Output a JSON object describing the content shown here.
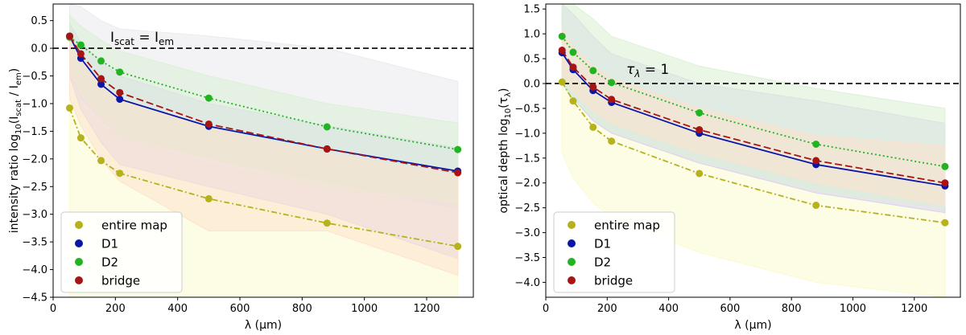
{
  "chart_data": [
    {
      "type": "line",
      "xlabel": "λ (μm)",
      "ylabel": "intensity ratio  log10(Iscat / Iem)",
      "ylabel_parts": {
        "prefix": "intensity ratio  log",
        "sub1": "10",
        "paren_open": "(I",
        "sub2": "scat",
        "mid": " / I",
        "sub3": "em",
        "paren_close": ")"
      },
      "annotation": {
        "text_I": "I",
        "sub_left": "scat",
        "eq": " = I",
        "sub_right": "em"
      },
      "xlim": [
        0,
        1350
      ],
      "ylim": [
        -4.5,
        0.8
      ],
      "xticks": [
        0,
        200,
        400,
        600,
        800,
        1000,
        1200
      ],
      "yticks": [
        -4.5,
        -4.0,
        -3.5,
        -3.0,
        -2.5,
        -2.0,
        -1.5,
        -1.0,
        -0.5,
        0.0,
        0.5
      ],
      "ytick_labels": [
        "−4.5",
        "−4.0",
        "−3.5",
        "−3.0",
        "−2.5",
        "−2.0",
        "−1.5",
        "−1.0",
        "−0.5",
        "0.0",
        "0.5"
      ],
      "hline": 0,
      "x": [
        53,
        89,
        154,
        214,
        500,
        880,
        1300
      ],
      "series": [
        {
          "name": "entire map",
          "color": "#b5b21b",
          "dash": "dashdot",
          "values": [
            -1.08,
            -1.62,
            -2.03,
            -2.26,
            -2.72,
            -3.16,
            -3.58
          ],
          "band_color": "#fbf9cd",
          "band_upper": [
            -0.55,
            -1.0,
            -1.4,
            -1.6,
            -2.1,
            -2.5,
            -2.9
          ],
          "band_lower": [
            -4.5,
            -4.5,
            -4.5,
            -4.5,
            -4.5,
            -4.5,
            -4.5
          ]
        },
        {
          "name": "D1",
          "color": "#0a16a6",
          "dash": "solid",
          "values": [
            0.22,
            -0.18,
            -0.65,
            -0.92,
            -1.41,
            -1.82,
            -2.22
          ],
          "band_color": "#d6d0ee",
          "band_upper": [
            0.45,
            0.1,
            -0.25,
            -0.5,
            -1.0,
            -1.4,
            -1.8
          ],
          "band_lower": [
            -0.5,
            -1.1,
            -1.7,
            -2.1,
            -2.5,
            -3.0,
            -3.8
          ]
        },
        {
          "name": "D2",
          "color": "#22b322",
          "dash": "dotted",
          "values": [
            0.2,
            0.06,
            -0.23,
            -0.43,
            -0.9,
            -1.42,
            -1.83
          ],
          "band_color": "#d9f0d4",
          "band_upper": [
            0.6,
            0.4,
            0.15,
            -0.05,
            -0.5,
            -1.0,
            -1.35
          ],
          "band_lower": [
            -0.4,
            -0.8,
            -1.3,
            -1.6,
            -2.0,
            -2.5,
            -2.8
          ]
        },
        {
          "name": "bridge",
          "color": "#a81414",
          "dash": "dashed",
          "values": [
            0.22,
            -0.1,
            -0.55,
            -0.8,
            -1.37,
            -1.82,
            -2.25
          ],
          "band_color": "#fde1cc",
          "band_upper": [
            0.2,
            -0.2,
            -0.65,
            -0.9,
            -1.45,
            -1.9,
            -2.3
          ],
          "band_lower": [
            -0.9,
            -1.4,
            -2.0,
            -2.4,
            -3.3,
            -3.3,
            -4.1
          ]
        }
      ],
      "grey_band": {
        "color": "#e9e9ee",
        "upper": [
          0.8,
          0.75,
          0.5,
          0.35,
          0.22,
          0.0,
          -0.6
        ],
        "lower": [
          -0.5,
          -0.9,
          -1.3,
          -1.6,
          -2.0,
          -2.4,
          -2.9
        ]
      },
      "legend": [
        "entire map",
        "D1",
        "D2",
        "bridge"
      ],
      "legend_placement": "lower-left"
    },
    {
      "type": "line",
      "xlabel": "λ (μm)",
      "ylabel": "optical depth log10(τλ)",
      "ylabel_parts": {
        "prefix": "optical depth log",
        "sub1": "10",
        "paren_open": "(τ",
        "sub2": "λ",
        "paren_close": ")"
      },
      "annotation": {
        "text_tau": "τ",
        "sub": "λ",
        "eq": " = 1"
      },
      "xlim": [
        0,
        1350
      ],
      "ylim": [
        -4.3,
        1.6
      ],
      "xticks": [
        0,
        200,
        400,
        600,
        800,
        1000,
        1200
      ],
      "yticks": [
        -4.0,
        -3.5,
        -3.0,
        -2.5,
        -2.0,
        -1.5,
        -1.0,
        -0.5,
        0.0,
        0.5,
        1.0,
        1.5
      ],
      "ytick_labels": [
        "−4.0",
        "−3.5",
        "−3.0",
        "−2.5",
        "−2.0",
        "−1.5",
        "−1.0",
        "−0.5",
        "0.0",
        "0.5",
        "1.0",
        "1.5"
      ],
      "hline": 0,
      "x": [
        53,
        89,
        154,
        214,
        500,
        880,
        1300
      ],
      "series": [
        {
          "name": "entire map",
          "color": "#b5b21b",
          "dash": "dashdot",
          "values": [
            0.03,
            -0.35,
            -0.88,
            -1.16,
            -1.81,
            -2.45,
            -2.8
          ],
          "band_color": "#fbf9cd",
          "band_upper": [
            0.5,
            0.1,
            -0.4,
            -0.7,
            -1.3,
            -1.9,
            -2.2
          ],
          "band_lower": [
            -1.4,
            -1.9,
            -2.4,
            -2.7,
            -3.4,
            -4.0,
            -4.3
          ]
        },
        {
          "name": "D1",
          "color": "#0a16a6",
          "dash": "solid",
          "values": [
            0.62,
            0.28,
            -0.14,
            -0.38,
            -1.0,
            -1.63,
            -2.06
          ],
          "band_color": "#d6d0ee",
          "band_upper": [
            1.6,
            1.4,
            0.95,
            0.6,
            0.0,
            -0.35,
            -0.8
          ],
          "band_lower": [
            0.0,
            -0.3,
            -0.75,
            -1.0,
            -1.6,
            -2.2,
            -2.6
          ]
        },
        {
          "name": "D2",
          "color": "#22b322",
          "dash": "dotted",
          "values": [
            0.95,
            0.63,
            0.26,
            0.02,
            -0.59,
            -1.22,
            -1.67
          ],
          "band_color": "#d9f0d4",
          "band_upper": [
            1.6,
            1.6,
            1.3,
            0.95,
            0.35,
            -0.1,
            -0.5
          ],
          "band_lower": [
            0.0,
            -0.3,
            -0.7,
            -0.95,
            -1.55,
            -2.15,
            -2.5
          ]
        },
        {
          "name": "bridge",
          "color": "#a81414",
          "dash": "dashed",
          "values": [
            0.67,
            0.33,
            -0.07,
            -0.32,
            -0.93,
            -1.55,
            -2.0
          ],
          "band_color": "#fde1cc",
          "band_upper": [
            1.1,
            0.75,
            0.35,
            0.1,
            -0.5,
            -1.05,
            -1.25
          ],
          "band_lower": [
            0.2,
            -0.15,
            -0.55,
            -0.8,
            -1.4,
            -2.0,
            -2.45
          ]
        }
      ],
      "legend": [
        "entire map",
        "D1",
        "D2",
        "bridge"
      ],
      "legend_placement": "lower-left"
    }
  ]
}
